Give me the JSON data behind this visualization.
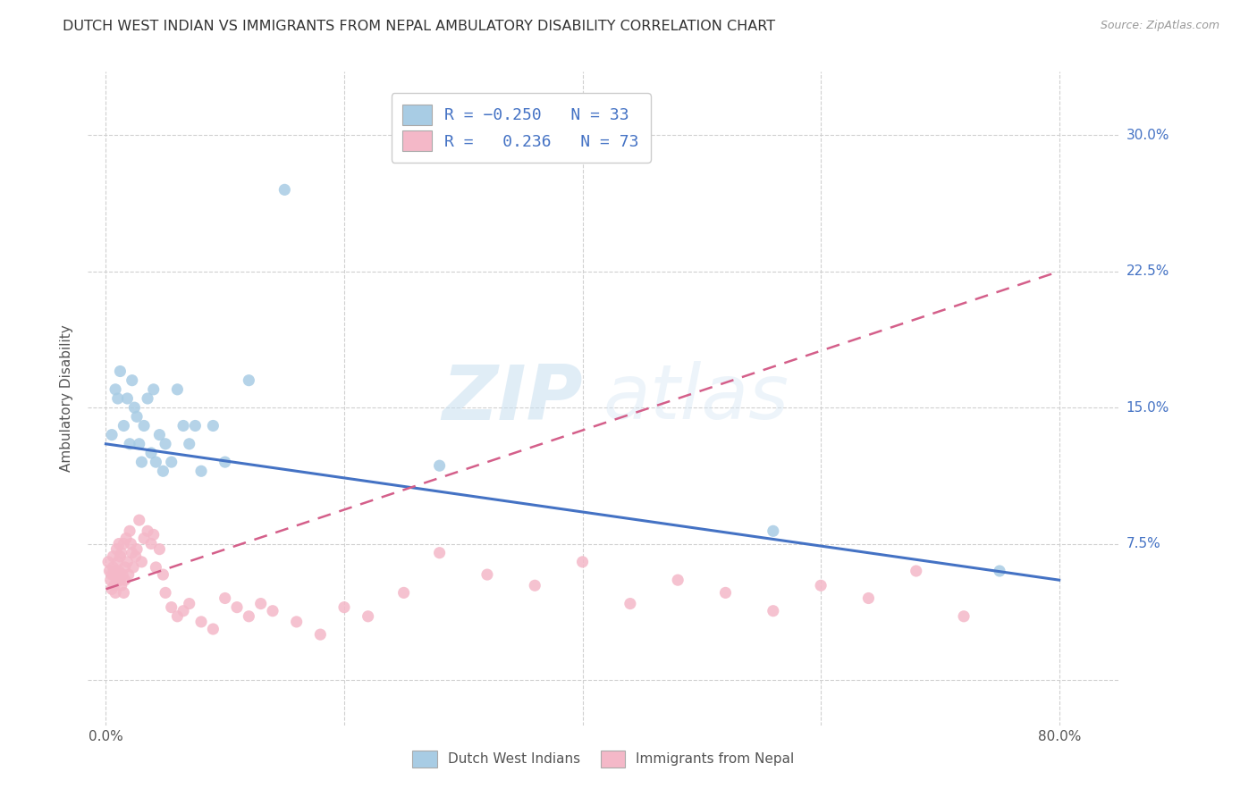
{
  "title": "DUTCH WEST INDIAN VS IMMIGRANTS FROM NEPAL AMBULATORY DISABILITY CORRELATION CHART",
  "source": "Source: ZipAtlas.com",
  "ylabel": "Ambulatory Disability",
  "x_ticks": [
    0.0,
    0.2,
    0.4,
    0.6,
    0.8
  ],
  "x_tick_labels": [
    "0.0%",
    "",
    "",
    "",
    "80.0%"
  ],
  "y_ticks": [
    0.0,
    0.075,
    0.15,
    0.225,
    0.3
  ],
  "y_tick_labels_right": [
    "",
    "7.5%",
    "15.0%",
    "22.5%",
    "30.0%"
  ],
  "xlim": [
    -0.015,
    0.85
  ],
  "ylim": [
    -0.025,
    0.335
  ],
  "watermark_zip": "ZIP",
  "watermark_atlas": "atlas",
  "legend_entry1": "R = -0.250   N = 33",
  "legend_entry2": "R =  0.236   N = 73",
  "legend_label1": "Dutch West Indians",
  "legend_label2": "Immigrants from Nepal",
  "blue_color": "#a8cce4",
  "pink_color": "#f4b8c8",
  "blue_line_color": "#4472c4",
  "pink_line_color": "#d45f8a",
  "background_color": "#ffffff",
  "grid_color": "#d0d0d0",
  "title_color": "#333333",
  "source_color": "#999999",
  "blue_scatter_x": [
    0.005,
    0.008,
    0.01,
    0.012,
    0.015,
    0.018,
    0.02,
    0.022,
    0.024,
    0.026,
    0.028,
    0.03,
    0.032,
    0.035,
    0.038,
    0.04,
    0.042,
    0.045,
    0.048,
    0.05,
    0.055,
    0.06,
    0.065,
    0.07,
    0.075,
    0.08,
    0.09,
    0.1,
    0.12,
    0.15,
    0.28,
    0.56,
    0.75
  ],
  "blue_scatter_y": [
    0.135,
    0.16,
    0.155,
    0.17,
    0.14,
    0.155,
    0.13,
    0.165,
    0.15,
    0.145,
    0.13,
    0.12,
    0.14,
    0.155,
    0.125,
    0.16,
    0.12,
    0.135,
    0.115,
    0.13,
    0.12,
    0.16,
    0.14,
    0.13,
    0.14,
    0.115,
    0.14,
    0.12,
    0.165,
    0.27,
    0.118,
    0.082,
    0.06
  ],
  "pink_scatter_x": [
    0.002,
    0.003,
    0.004,
    0.005,
    0.005,
    0.006,
    0.006,
    0.007,
    0.007,
    0.008,
    0.008,
    0.009,
    0.009,
    0.01,
    0.01,
    0.011,
    0.011,
    0.012,
    0.012,
    0.013,
    0.013,
    0.014,
    0.015,
    0.015,
    0.016,
    0.016,
    0.017,
    0.018,
    0.019,
    0.02,
    0.021,
    0.022,
    0.023,
    0.025,
    0.026,
    0.028,
    0.03,
    0.032,
    0.035,
    0.038,
    0.04,
    0.042,
    0.045,
    0.048,
    0.05,
    0.055,
    0.06,
    0.065,
    0.07,
    0.08,
    0.09,
    0.1,
    0.11,
    0.12,
    0.13,
    0.14,
    0.16,
    0.18,
    0.2,
    0.22,
    0.25,
    0.28,
    0.32,
    0.36,
    0.4,
    0.44,
    0.48,
    0.52,
    0.56,
    0.6,
    0.64,
    0.68,
    0.72
  ],
  "pink_scatter_y": [
    0.065,
    0.06,
    0.055,
    0.058,
    0.05,
    0.062,
    0.068,
    0.058,
    0.052,
    0.06,
    0.048,
    0.055,
    0.072,
    0.065,
    0.058,
    0.075,
    0.06,
    0.055,
    0.068,
    0.052,
    0.07,
    0.058,
    0.048,
    0.075,
    0.062,
    0.055,
    0.078,
    0.065,
    0.058,
    0.082,
    0.075,
    0.07,
    0.062,
    0.068,
    0.072,
    0.088,
    0.065,
    0.078,
    0.082,
    0.075,
    0.08,
    0.062,
    0.072,
    0.058,
    0.048,
    0.04,
    0.035,
    0.038,
    0.042,
    0.032,
    0.028,
    0.045,
    0.04,
    0.035,
    0.042,
    0.038,
    0.032,
    0.025,
    0.04,
    0.035,
    0.048,
    0.07,
    0.058,
    0.052,
    0.065,
    0.042,
    0.055,
    0.048,
    0.038,
    0.052,
    0.045,
    0.06,
    0.035
  ],
  "blue_trend_x": [
    0.0,
    0.8
  ],
  "blue_trend_y": [
    0.13,
    0.055
  ],
  "pink_trend_x": [
    0.0,
    0.8
  ],
  "pink_trend_y": [
    0.05,
    0.225
  ]
}
